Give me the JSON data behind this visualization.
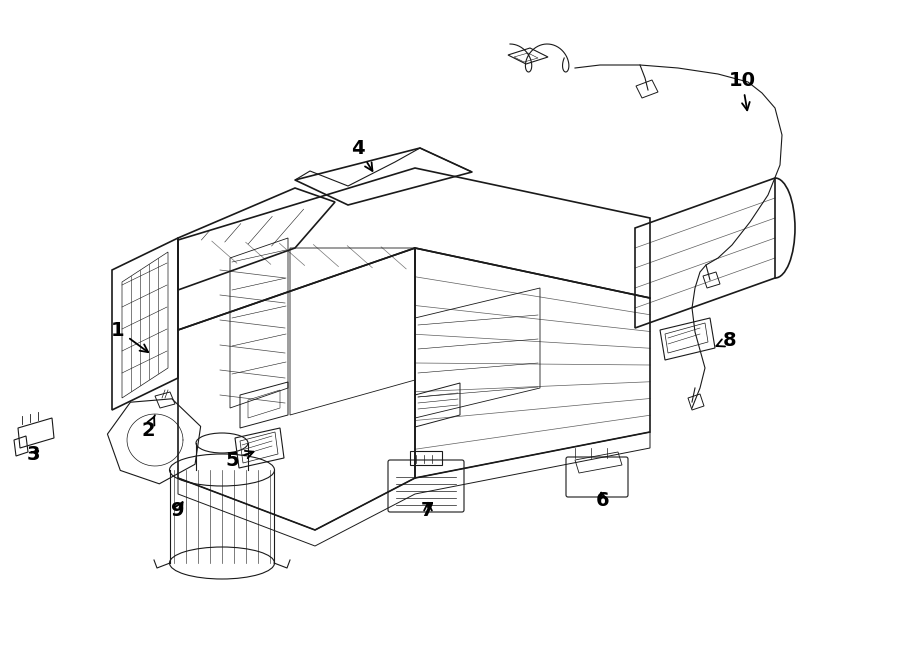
{
  "background_color": "#ffffff",
  "line_color": "#1a1a1a",
  "label_color": "#000000",
  "figsize": [
    9.0,
    6.61
  ],
  "dpi": 100,
  "labels": {
    "1": [
      118,
      330,
      152,
      355
    ],
    "2": [
      148,
      430,
      155,
      415
    ],
    "3": [
      33,
      455,
      42,
      448
    ],
    "4": [
      358,
      148,
      375,
      175
    ],
    "5": [
      232,
      460,
      258,
      450
    ],
    "6": [
      603,
      500,
      600,
      488
    ],
    "7": [
      428,
      510,
      428,
      498
    ],
    "8": [
      730,
      340,
      712,
      348
    ],
    "9": [
      178,
      510,
      185,
      498
    ],
    "10": [
      742,
      80,
      748,
      115
    ]
  }
}
